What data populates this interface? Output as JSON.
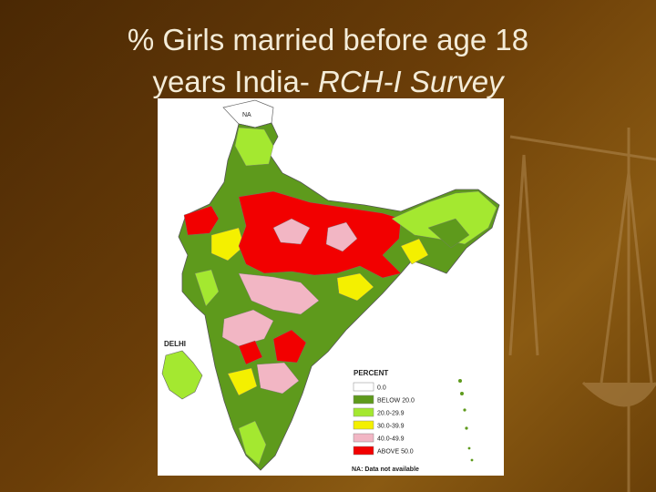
{
  "header": {
    "title_line1": "% Girls married before age 18",
    "title_line2": "years India- ",
    "title_italic": "RCH-I Survey"
  },
  "map": {
    "labels": [
      "NA",
      "DELHI"
    ]
  },
  "legend": {
    "title": "PERCENT",
    "items": [
      {
        "label": "0.0",
        "color": "#ffffff"
      },
      {
        "label": "BELOW 20.0",
        "color": "#5e9a1c"
      },
      {
        "label": "20.0-29.9",
        "color": "#a4e830"
      },
      {
        "label": "30.0-39.9",
        "color": "#f4f000"
      },
      {
        "label": "40.0-49.9",
        "color": "#f2b6c4"
      },
      {
        "label": "ABOVE 50.0",
        "color": "#f20000"
      }
    ],
    "note": "NA: Data not available"
  }
}
